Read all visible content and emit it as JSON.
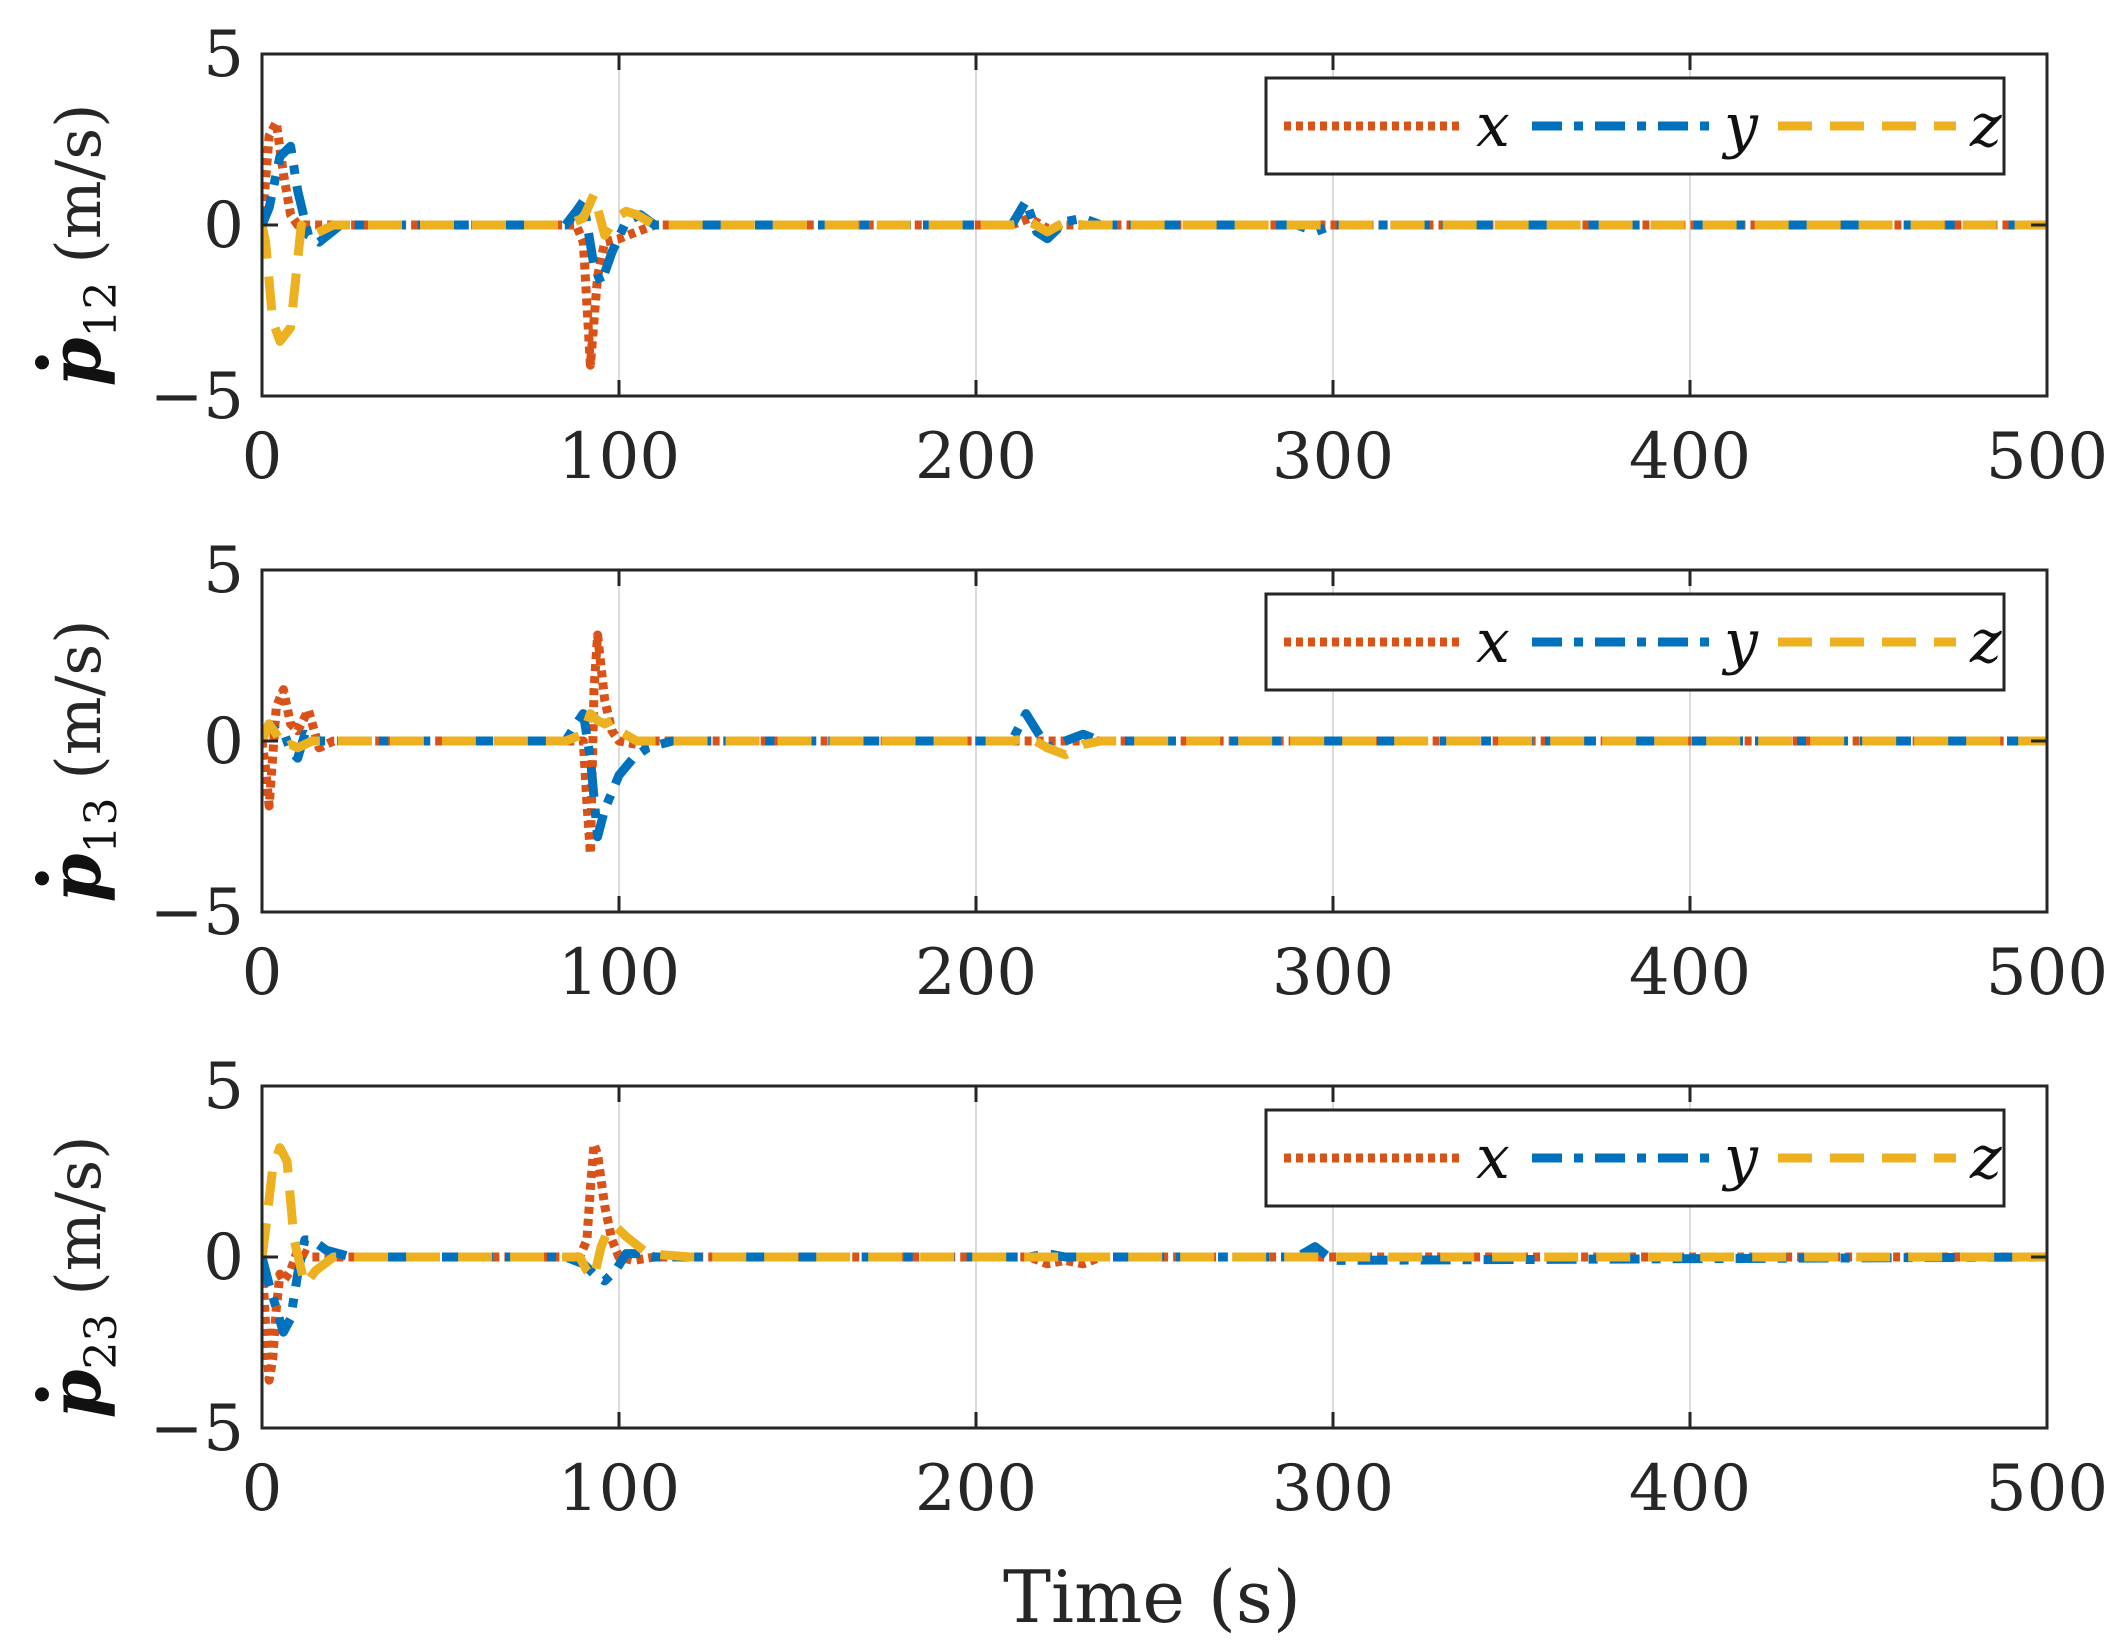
{
  "chart_data": [
    {
      "type": "line",
      "ylabel_symbol": "p",
      "ylabel_subscript": "12",
      "ylabel_unit": "(m/s)",
      "xlim": [
        0,
        500
      ],
      "ylim": [
        -5,
        5
      ],
      "x_ticks": [
        "0",
        "100",
        "200",
        "300",
        "400",
        "500"
      ],
      "y_ticks": [
        "5",
        "0",
        "−5"
      ],
      "grid": "x-only",
      "legend": "top-right",
      "series": [
        {
          "name": "x",
          "x": [
            0,
            2,
            4,
            6,
            8,
            10,
            14,
            20,
            30,
            85,
            88,
            90,
            92,
            94,
            96,
            100,
            105,
            110,
            120,
            210,
            215,
            220,
            225,
            235,
            500
          ],
          "values": [
            0,
            2.6,
            3.0,
            1.5,
            0.3,
            0,
            0,
            0,
            0,
            0,
            0,
            -0.5,
            -4.1,
            -1.5,
            -0.5,
            -0.4,
            -0.2,
            0,
            0,
            0,
            0.2,
            -0.1,
            0,
            0,
            0
          ]
        },
        {
          "name": "y",
          "x": [
            0,
            2,
            5,
            8,
            10,
            13,
            16,
            22,
            30,
            85,
            88,
            90,
            93,
            95,
            98,
            102,
            106,
            110,
            120,
            210,
            214,
            217,
            220,
            225,
            230,
            235,
            290,
            295,
            300,
            500
          ],
          "values": [
            0,
            0.5,
            2.0,
            2.3,
            1.0,
            -0.3,
            -0.5,
            0,
            0,
            0,
            0.4,
            0.7,
            -1.2,
            -1.7,
            -0.8,
            0.1,
            0.3,
            0,
            0,
            0,
            0.7,
            -0.2,
            -0.4,
            0.1,
            0.2,
            0,
            0,
            -0.2,
            0,
            0
          ]
        },
        {
          "name": "z",
          "x": [
            0,
            1,
            3,
            5,
            8,
            11,
            14,
            20,
            30,
            85,
            90,
            93,
            96,
            99,
            102,
            105,
            110,
            120,
            210,
            215,
            220,
            225,
            230,
            500
          ],
          "values": [
            0,
            -0.5,
            -2.8,
            -3.4,
            -3.0,
            0,
            -0.3,
            0,
            0,
            0,
            0.2,
            0.9,
            -0.3,
            0.2,
            0.4,
            0.3,
            0,
            0,
            0,
            0.1,
            -0.2,
            0.1,
            0,
            0
          ]
        }
      ]
    },
    {
      "type": "line",
      "ylabel_symbol": "p",
      "ylabel_subscript": "13",
      "ylabel_unit": "(m/s)",
      "xlim": [
        0,
        500
      ],
      "ylim": [
        -5,
        5
      ],
      "x_ticks": [
        "0",
        "100",
        "200",
        "300",
        "400",
        "500"
      ],
      "y_ticks": [
        "5",
        "0",
        "−5"
      ],
      "grid": "x-only",
      "legend": "top-right",
      "series": [
        {
          "name": "x",
          "x": [
            0,
            1,
            2,
            4,
            6,
            8,
            10,
            13,
            16,
            20,
            25,
            30,
            85,
            88,
            90,
            91,
            92,
            93,
            94,
            96,
            98,
            100,
            105,
            110,
            120,
            500
          ],
          "values": [
            0,
            -0.8,
            -1.9,
            1.0,
            1.5,
            0.5,
            0.3,
            0.9,
            -0.2,
            0,
            0,
            0,
            0,
            0,
            0,
            -1.8,
            -3.3,
            1.5,
            3.1,
            1.2,
            0.3,
            0,
            -0.1,
            0,
            0,
            0
          ]
        },
        {
          "name": "y",
          "x": [
            0,
            2,
            4,
            6,
            8,
            10,
            12,
            16,
            20,
            30,
            85,
            88,
            90,
            92,
            94,
            96,
            98,
            100,
            104,
            108,
            115,
            210,
            214,
            217,
            220,
            225,
            230,
            235,
            500
          ],
          "values": [
            0,
            0.5,
            0.3,
            0.3,
            -0.3,
            -0.5,
            0.2,
            0,
            0,
            0,
            0,
            0.5,
            0.8,
            -0.5,
            -2.8,
            -2.0,
            -1.5,
            -1.0,
            -0.5,
            -0.2,
            0,
            0,
            0.8,
            0.3,
            -0.2,
            0,
            0.2,
            0,
            0
          ]
        },
        {
          "name": "z",
          "x": [
            0,
            2,
            4,
            6,
            8,
            10,
            14,
            20,
            30,
            85,
            90,
            92,
            94,
            96,
            98,
            100,
            105,
            210,
            215,
            220,
            225,
            230,
            235,
            500
          ],
          "values": [
            0,
            0.5,
            0.2,
            -0.2,
            -0.1,
            -0.2,
            0,
            0,
            0,
            0,
            0.2,
            0.8,
            0.6,
            0.5,
            0.6,
            0.3,
            0,
            0,
            0.1,
            -0.2,
            -0.4,
            -0.1,
            0,
            0
          ]
        }
      ]
    },
    {
      "type": "line",
      "ylabel_symbol": "p",
      "ylabel_subscript": "23",
      "ylabel_unit": "(m/s)",
      "xlim": [
        0,
        500
      ],
      "ylim": [
        -5,
        5
      ],
      "x_ticks": [
        "0",
        "100",
        "200",
        "300",
        "400",
        "500"
      ],
      "y_ticks": [
        "5",
        "0",
        "−5"
      ],
      "grid": "x-only",
      "legend": "top-right",
      "series": [
        {
          "name": "x",
          "x": [
            0,
            1,
            2,
            3,
            4,
            5,
            6,
            8,
            10,
            14,
            20,
            30,
            85,
            89,
            91,
            92,
            93,
            94,
            96,
            98,
            100,
            104,
            110,
            120,
            215,
            220,
            225,
            230,
            235,
            500
          ],
          "values": [
            0,
            -2.0,
            -3.6,
            -3.0,
            -1.5,
            -0.5,
            -0.7,
            -0.4,
            0.2,
            0,
            0,
            0,
            0,
            0,
            0.5,
            2.0,
            3.3,
            3.0,
            1.5,
            0.5,
            0,
            -0.1,
            0,
            0,
            0,
            -0.2,
            -0.1,
            -0.2,
            0,
            0
          ]
        },
        {
          "name": "y",
          "x": [
            0,
            2,
            4,
            6,
            8,
            10,
            12,
            14,
            18,
            25,
            30,
            85,
            90,
            93,
            96,
            99,
            102,
            106,
            110,
            120,
            215,
            220,
            225,
            230,
            290,
            295,
            300,
            500
          ],
          "values": [
            0,
            -0.8,
            -1.5,
            -2.2,
            -1.8,
            -0.5,
            0.5,
            0.5,
            0.2,
            0,
            0,
            0,
            -0.2,
            -0.5,
            -0.7,
            -0.4,
            0.1,
            0.1,
            0,
            0,
            0,
            0.1,
            0,
            0,
            0,
            0.3,
            -0.1,
            0
          ]
        },
        {
          "name": "z",
          "x": [
            0,
            1,
            3,
            5,
            7,
            9,
            12,
            15,
            20,
            30,
            85,
            89,
            91,
            93,
            95,
            97,
            99,
            102,
            108,
            120,
            210,
            220,
            230,
            500
          ],
          "values": [
            0,
            0.8,
            2.6,
            3.2,
            2.8,
            0.5,
            -0.8,
            -0.4,
            0,
            0,
            0,
            0,
            -0.4,
            -0.6,
            0.3,
            0.8,
            0.9,
            0.6,
            0.1,
            0,
            0,
            0,
            0,
            0
          ]
        }
      ]
    }
  ],
  "xlabel": "Time (s)",
  "series_colors": {
    "x": "#D95319",
    "y": "#0072BD",
    "z": "#EDB120"
  },
  "series_styles": {
    "x": "dotted",
    "y": "dashdot",
    "z": "dashed"
  }
}
